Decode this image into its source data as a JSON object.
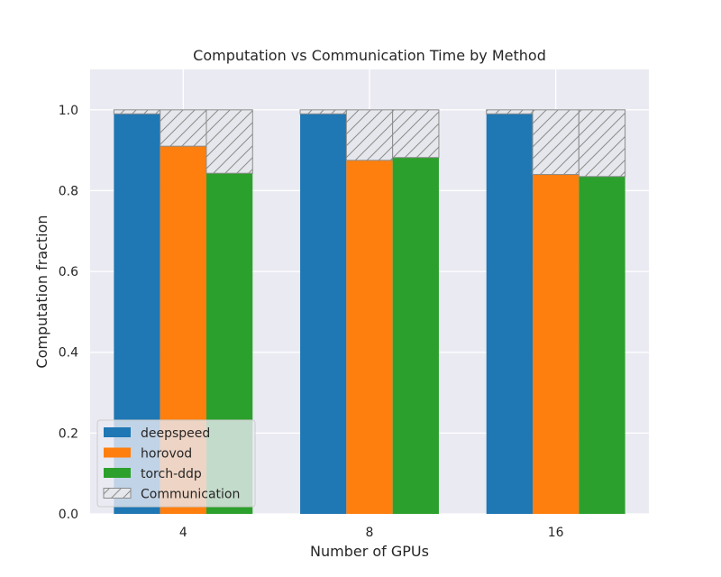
{
  "chart_data": {
    "type": "bar",
    "title": "Computation vs Communication Time by Method",
    "xlabel": "Number of GPUs",
    "ylabel": "Computation fraction",
    "categories": [
      "4",
      "8",
      "16"
    ],
    "ylim": [
      0,
      1.1
    ],
    "yticks": [
      0.0,
      0.2,
      0.4,
      0.6,
      0.8,
      1.0
    ],
    "ytick_labels": [
      "0.0",
      "0.2",
      "0.4",
      "0.6",
      "0.8",
      "1.0"
    ],
    "grid": true,
    "stacked_total": 1.0,
    "series": [
      {
        "name": "deepspeed",
        "color": "#1f77b4",
        "values": [
          0.99,
          0.99,
          0.99
        ]
      },
      {
        "name": "horovod",
        "color": "#ff7f0e",
        "values": [
          0.91,
          0.875,
          0.84
        ]
      },
      {
        "name": "torch-ddp",
        "color": "#2ca02c",
        "values": [
          0.843,
          0.882,
          0.835
        ]
      }
    ],
    "communication": {
      "name": "Communication",
      "fill": "#e5e7ec",
      "hatch": "diagonal",
      "edge": "#8c8c8c"
    },
    "legend_position": "lower-left",
    "background": "#eaeaf2"
  }
}
